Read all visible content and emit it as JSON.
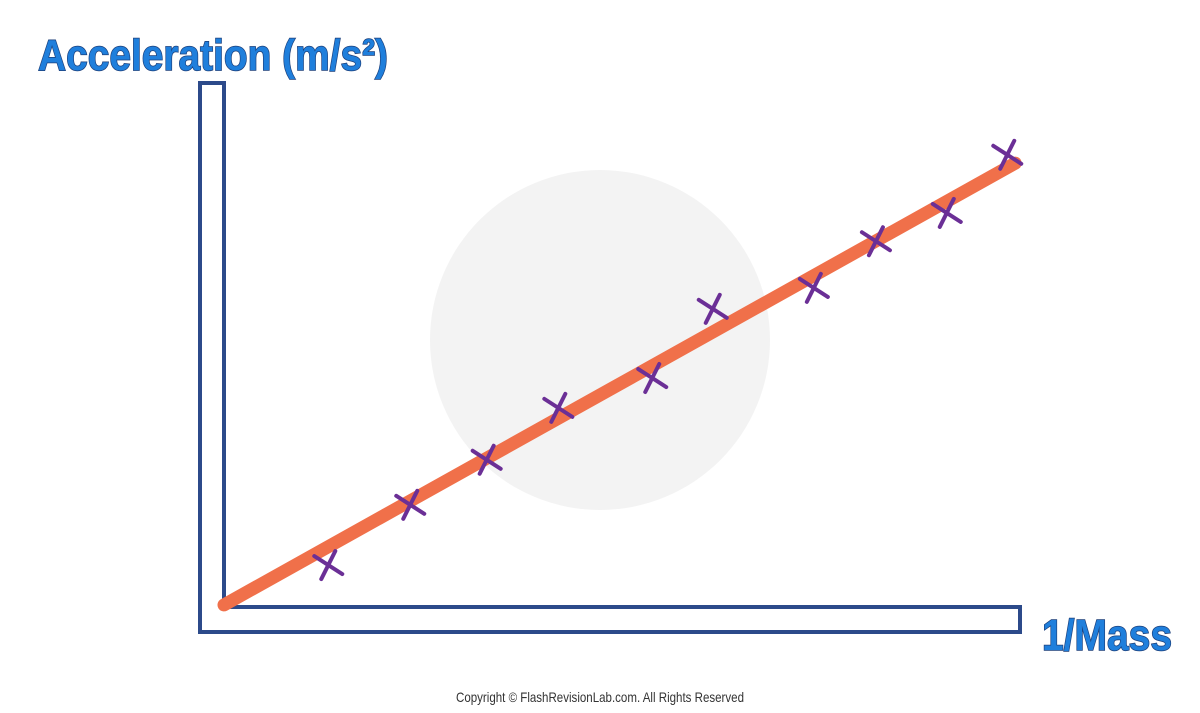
{
  "chart_data": {
    "type": "scatter",
    "y_label": "Acceleration (m/s²)",
    "x_label": "1/Mass",
    "footer": "Copyright © FlashRevisionLab.com. All Rights Reserved",
    "xlim": [
      0,
      100
    ],
    "ylim": [
      0,
      100
    ],
    "series": [
      {
        "color": "#6b2f96",
        "x": [
          13.1,
          23.4,
          33.0,
          42.0,
          53.8,
          61.4,
          74.1,
          81.9,
          90.8,
          98.4
        ],
        "values": [
          8.0,
          19.5,
          28.1,
          38.0,
          43.7,
          56.9,
          60.9,
          69.8,
          75.2,
          86.3
        ]
      }
    ],
    "fit": {
      "color": "#f0704a",
      "x": [
        0,
        99.4
      ],
      "y": [
        0.4,
        84.7
      ]
    }
  }
}
